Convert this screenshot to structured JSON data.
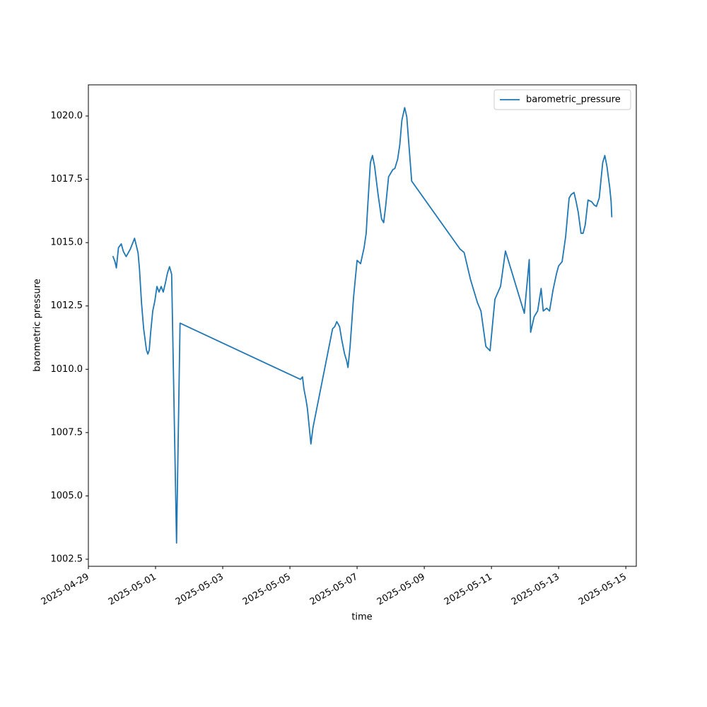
{
  "chart_data": {
    "type": "line",
    "xlabel": "time",
    "ylabel": "barometric pressure",
    "x": [
      "2025-04-29T17:30",
      "2025-04-29T19:00",
      "2025-04-29T20:00",
      "2025-04-29T21:30",
      "2025-04-29T23:30",
      "2025-04-30T01:00",
      "2025-04-30T03:00",
      "2025-04-30T06:00",
      "2025-04-30T09:00",
      "2025-04-30T11:30",
      "2025-04-30T12:30",
      "2025-04-30T14:00",
      "2025-04-30T15:30",
      "2025-04-30T17:30",
      "2025-04-30T18:30",
      "2025-04-30T19:30",
      "2025-04-30T20:30",
      "2025-04-30T22:00",
      "2025-04-30T23:30",
      "2025-05-01T01:00",
      "2025-05-01T02:30",
      "2025-05-01T04:00",
      "2025-05-01T05:30",
      "2025-05-01T07:00",
      "2025-05-01T08:30",
      "2025-05-01T10:00",
      "2025-05-01T11:30",
      "2025-05-01T15:00",
      "2025-05-01T17:30",
      "2025-05-05T07:30",
      "2025-05-05T09:00",
      "2025-05-05T10:00",
      "2025-05-05T11:30",
      "2025-05-05T12:30",
      "2025-05-05T15:00",
      "2025-05-05T16:30",
      "2025-05-06T06:30",
      "2025-05-06T08:00",
      "2025-05-06T09:30",
      "2025-05-06T11:30",
      "2025-05-06T13:00",
      "2025-05-06T15:00",
      "2025-05-06T16:30",
      "2025-05-06T17:30",
      "2025-05-06T19:00",
      "2025-05-06T21:30",
      "2025-05-07T00:00",
      "2025-05-07T02:30",
      "2025-05-07T05:00",
      "2025-05-07T06:30",
      "2025-05-07T07:30",
      "2025-05-07T09:30",
      "2025-05-07T11:00",
      "2025-05-07T12:30",
      "2025-05-07T15:00",
      "2025-05-07T17:30",
      "2025-05-07T19:00",
      "2025-05-07T20:30",
      "2025-05-07T22:30",
      "2025-05-08T01:30",
      "2025-05-08T03:00",
      "2025-05-08T05:00",
      "2025-05-08T06:30",
      "2025-05-08T08:00",
      "2025-05-08T10:00",
      "2025-05-08T11:30",
      "2025-05-08T14:00",
      "2025-05-08T15:00",
      "2025-05-10T01:30",
      "2025-05-10T04:30",
      "2025-05-10T09:00",
      "2025-05-10T14:00",
      "2025-05-10T16:30",
      "2025-05-10T20:00",
      "2025-05-10T23:00",
      "2025-05-11T02:30",
      "2025-05-11T06:30",
      "2025-05-11T10:00",
      "2025-05-11T23:30",
      "2025-05-12T01:30",
      "2025-05-12T03:00",
      "2025-05-12T04:00",
      "2025-05-12T06:30",
      "2025-05-12T09:00",
      "2025-05-12T11:30",
      "2025-05-12T13:00",
      "2025-05-12T15:30",
      "2025-05-12T17:30",
      "2025-05-12T20:00",
      "2025-05-12T22:30",
      "2025-05-13T00:00",
      "2025-05-13T02:30",
      "2025-05-13T05:00",
      "2025-05-13T07:30",
      "2025-05-13T09:00",
      "2025-05-13T11:00",
      "2025-05-13T12:30",
      "2025-05-13T14:00",
      "2025-05-13T16:00",
      "2025-05-13T17:30",
      "2025-05-13T19:00",
      "2025-05-13T21:00",
      "2025-05-13T23:30",
      "2025-05-14T01:30",
      "2025-05-14T03:00",
      "2025-05-14T05:00",
      "2025-05-14T07:30",
      "2025-05-14T09:00",
      "2025-05-14T10:30",
      "2025-05-14T12:30",
      "2025-05-14T13:30",
      "2025-05-14T14:00"
    ],
    "series": [
      {
        "name": "barometric_pressure",
        "color": "#1f77b4",
        "values": [
          1014.47,
          1014.25,
          1014.0,
          1014.8,
          1014.95,
          1014.65,
          1014.45,
          1014.75,
          1015.17,
          1014.6,
          1013.97,
          1012.6,
          1011.6,
          1010.76,
          1010.6,
          1010.76,
          1011.45,
          1012.3,
          1012.7,
          1013.27,
          1013.05,
          1013.27,
          1013.05,
          1013.4,
          1013.8,
          1014.05,
          1013.75,
          1003.14,
          1011.82,
          1009.6,
          1009.7,
          1009.23,
          1008.8,
          1008.45,
          1007.05,
          1007.7,
          1011.6,
          1011.68,
          1011.88,
          1011.68,
          1011.18,
          1010.62,
          1010.34,
          1010.07,
          1010.9,
          1012.86,
          1014.3,
          1014.17,
          1014.8,
          1015.37,
          1016.34,
          1018.16,
          1018.44,
          1018.02,
          1016.9,
          1015.93,
          1015.79,
          1016.48,
          1017.6,
          1017.88,
          1017.93,
          1018.3,
          1018.86,
          1019.83,
          1020.33,
          1019.97,
          1018.16,
          1017.43,
          1014.75,
          1014.61,
          1013.55,
          1012.63,
          1012.3,
          1010.9,
          1010.73,
          1012.77,
          1013.27,
          1014.67,
          1012.21,
          1013.41,
          1014.33,
          1011.46,
          1012.07,
          1012.3,
          1013.19,
          1012.3,
          1012.41,
          1012.3,
          1013.13,
          1013.78,
          1014.08,
          1014.25,
          1015.23,
          1016.76,
          1016.9,
          1016.98,
          1016.62,
          1016.2,
          1015.37,
          1015.37,
          1015.7,
          1016.68,
          1016.62,
          1016.48,
          1016.43,
          1016.76,
          1018.16,
          1018.44,
          1018.02,
          1017.18,
          1016.62,
          1016.0
        ]
      }
    ],
    "xlim": [
      "2025-04-29T00:00",
      "2025-05-15T07:30"
    ],
    "xticks": [
      "2025-04-29",
      "2025-05-01",
      "2025-05-03",
      "2025-05-05",
      "2025-05-07",
      "2025-05-09",
      "2025-05-11",
      "2025-05-13",
      "2025-05-15"
    ],
    "ylim": [
      1002.22,
      1021.23
    ],
    "yticks": [
      1002.5,
      {
        "value": 1005,
        "label": "1005.0"
      },
      1007.5,
      {
        "value": 1010,
        "label": "1010.0"
      },
      1012.5,
      {
        "value": 1015,
        "label": "1015.0"
      },
      1017.5,
      {
        "value": 1020,
        "label": "1020.0"
      }
    ],
    "grid": false,
    "legend": "upper right"
  }
}
